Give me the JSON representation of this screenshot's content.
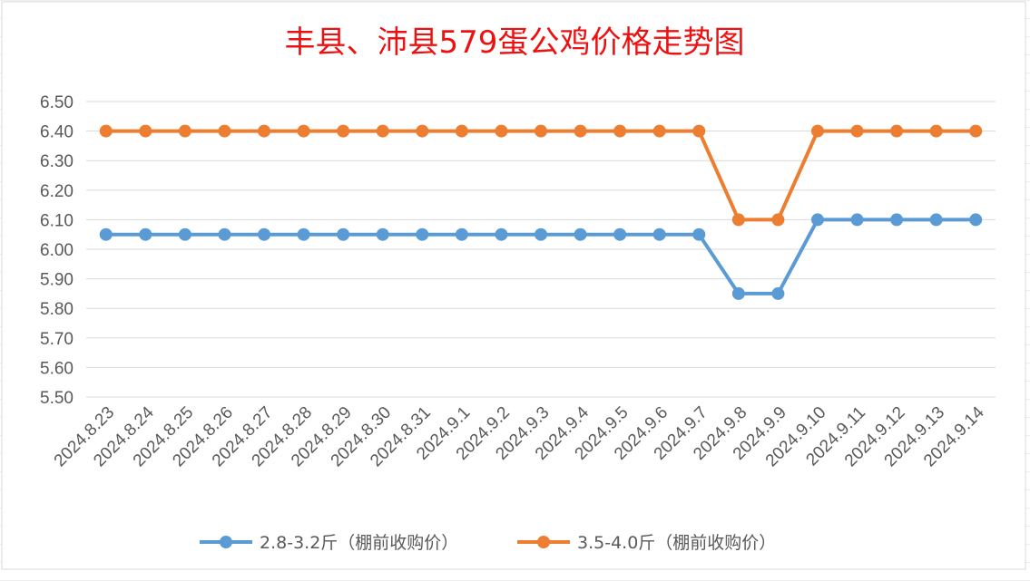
{
  "chart_data": {
    "type": "line",
    "title": "丰县、沛县579蛋公鸡价格走势图",
    "categories": [
      "2024.8.23",
      "2024.8.24",
      "2024.8.25",
      "2024.8.26",
      "2024.8.27",
      "2024.8.28",
      "2024.8.29",
      "2024.8.30",
      "2024.8.31",
      "2024.9.1",
      "2024.9.2",
      "2024.9.3",
      "2024.9.4",
      "2024.9.5",
      "2024.9.6",
      "2024.9.7",
      "2024.9.8",
      "2024.9.9",
      "2024.9.10",
      "2024.9.11",
      "2024.9.12",
      "2024.9.13",
      "2024.9.14"
    ],
    "series": [
      {
        "name": "2.8-3.2斤（棚前收购价）",
        "color": "#5b9bd5",
        "values": [
          6.05,
          6.05,
          6.05,
          6.05,
          6.05,
          6.05,
          6.05,
          6.05,
          6.05,
          6.05,
          6.05,
          6.05,
          6.05,
          6.05,
          6.05,
          6.05,
          5.85,
          5.85,
          6.1,
          6.1,
          6.1,
          6.1,
          6.1
        ]
      },
      {
        "name": "3.5-4.0斤（棚前收购价）",
        "color": "#ed7d31",
        "values": [
          6.4,
          6.4,
          6.4,
          6.4,
          6.4,
          6.4,
          6.4,
          6.4,
          6.4,
          6.4,
          6.4,
          6.4,
          6.4,
          6.4,
          6.4,
          6.4,
          6.1,
          6.1,
          6.4,
          6.4,
          6.4,
          6.4,
          6.4
        ]
      }
    ],
    "yticks": [
      "6.50",
      "6.40",
      "6.30",
      "6.20",
      "6.10",
      "6.00",
      "5.90",
      "5.80",
      "5.70",
      "5.60",
      "5.50"
    ],
    "ylim": [
      5.5,
      6.5
    ],
    "xlabel": "",
    "ylabel": "",
    "grid": true,
    "legend_position": "bottom",
    "title_color": "#ee1111",
    "grid_color": "#d9d9d9"
  }
}
